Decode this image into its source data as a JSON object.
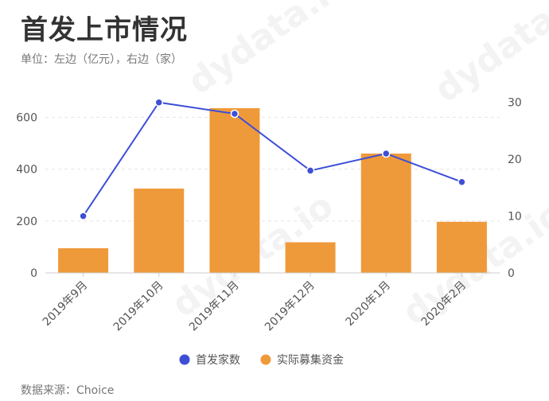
{
  "header": {
    "title": "首发上市情况",
    "subtitle": "单位：左边（亿元），右边（家）"
  },
  "footer": {
    "source": "数据来源：Choice"
  },
  "watermark": {
    "text": "dydata.io"
  },
  "chart_data": {
    "type": "bar",
    "categories": [
      "2019年9月",
      "2019年10月",
      "2019年11月",
      "2019年12月",
      "2020年1月",
      "2020年2月"
    ],
    "series": [
      {
        "name": "首发家数",
        "type": "line",
        "axis": "right",
        "color": "#3d4fd6",
        "values": [
          10,
          30,
          28,
          18,
          21,
          16
        ]
      },
      {
        "name": "实际募集资金",
        "type": "bar",
        "axis": "left",
        "color": "#ef9a3a",
        "values": [
          95,
          325,
          635,
          118,
          460,
          197
        ]
      }
    ],
    "y_left": {
      "ticks": [
        "0",
        "200",
        "400",
        "600"
      ],
      "lim": [
        0,
        690
      ]
    },
    "y_right": {
      "ticks": [
        "0",
        "10",
        "20",
        "30"
      ],
      "lim": [
        0,
        31.5
      ]
    },
    "grid": true,
    "legend": "bottom-center"
  }
}
